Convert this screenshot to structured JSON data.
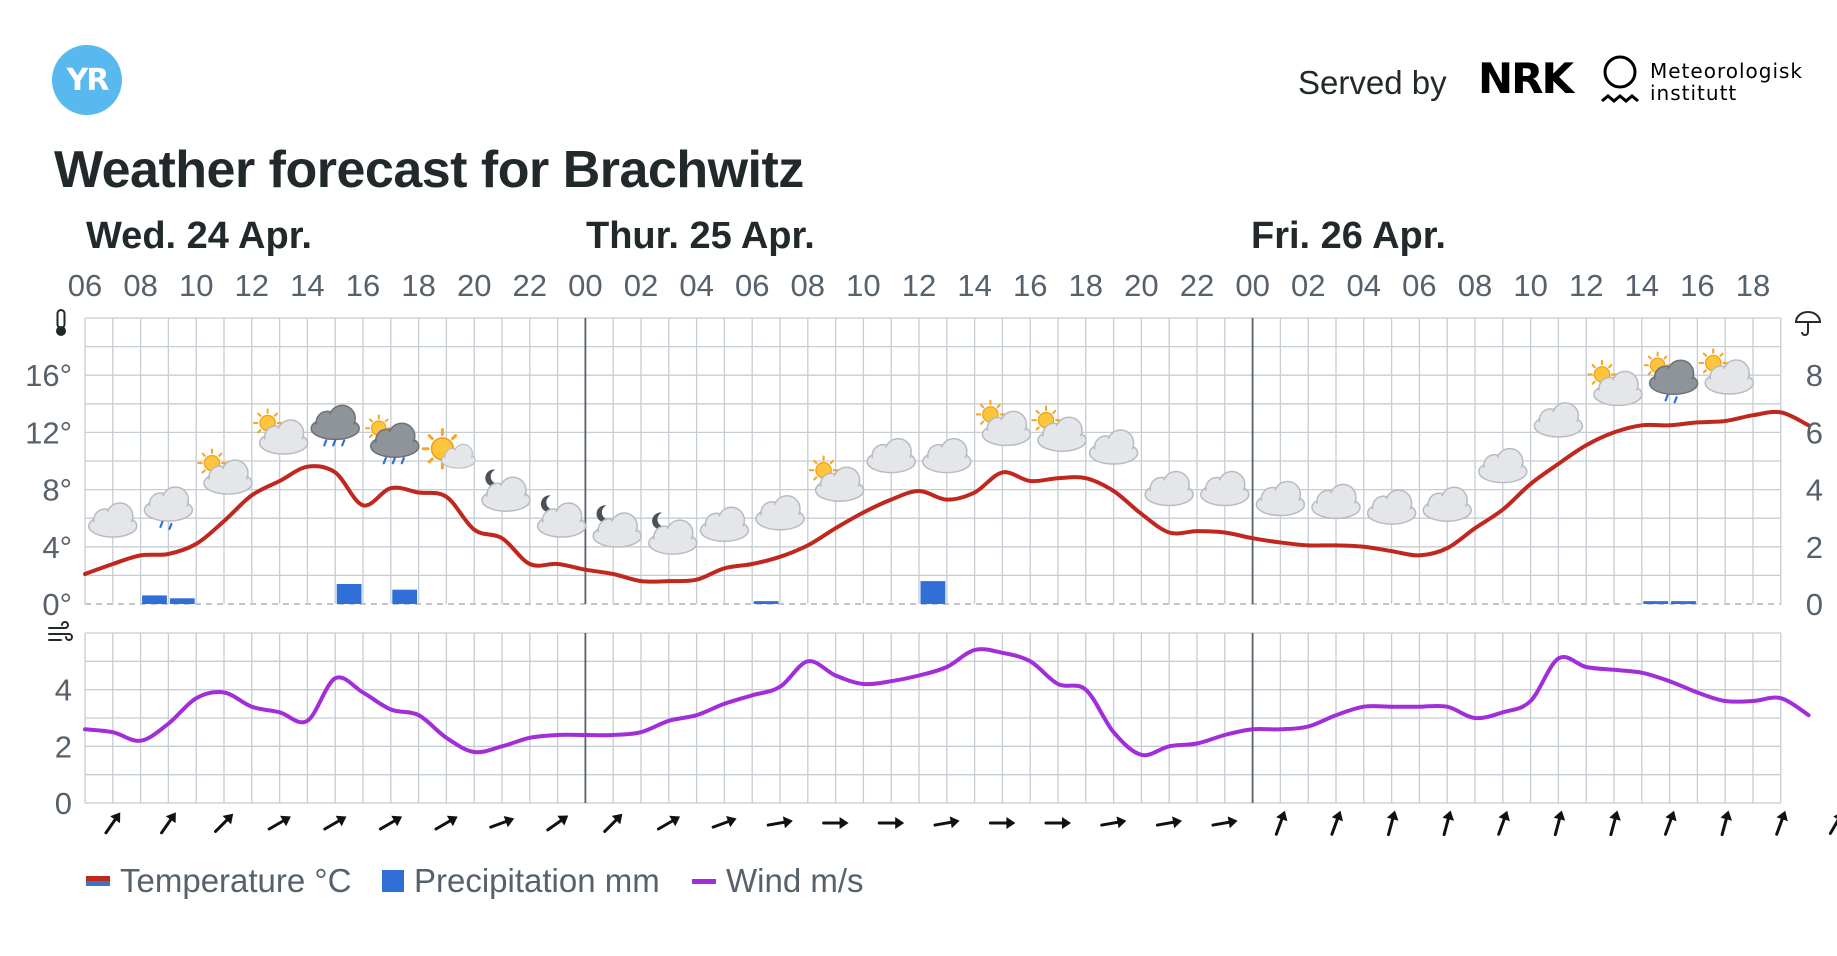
{
  "header": {
    "logo_text": "YR",
    "served_by": "Served by",
    "nrk_logo_text": "NRK",
    "met_line1": "Meteorologisk",
    "met_line2": "institutt"
  },
  "title": "Weather forecast for Brachwitz",
  "days": [
    {
      "label": "Wed. 24 Apr."
    },
    {
      "label": "Thur. 25 Apr."
    },
    {
      "label": "Fri. 26 Apr."
    }
  ],
  "legend": {
    "temperature": "Temperature °C",
    "precipitation": "Precipitation mm",
    "wind": "Wind m/s"
  },
  "colors": {
    "temperature": "#c0281f",
    "temperature_cold": "#3b73c8",
    "precipitation": "#2f6fd6",
    "wind": "#a12ed8",
    "grid": "#c6cdd3",
    "day_divider": "#56616c"
  },
  "chart_data": {
    "type": "line",
    "hour_tick_labels": [
      "06",
      "08",
      "10",
      "12",
      "14",
      "16",
      "18",
      "20",
      "22",
      "00",
      "02",
      "04",
      "06",
      "08",
      "10",
      "12",
      "14",
      "16",
      "18",
      "20",
      "22",
      "00",
      "02",
      "04",
      "06",
      "08",
      "10",
      "12",
      "14",
      "16",
      "18"
    ],
    "x_start": "2024-04-24T06:00",
    "x_end": "2024-04-26T19:00",
    "day_boundaries": [
      "2024-04-25T00:00",
      "2024-04-26T00:00"
    ],
    "temperature": {
      "unit": "°C",
      "ylim": [
        0,
        20
      ],
      "y_ticks": [
        0,
        4,
        8,
        12,
        16
      ],
      "y_tick_labels": [
        "0°",
        "4°",
        "8°",
        "12°",
        "16°"
      ],
      "values": [
        2.1,
        2.8,
        3.4,
        3.5,
        4.2,
        5.8,
        7.6,
        8.6,
        9.6,
        9.2,
        6.9,
        8.1,
        7.8,
        7.5,
        5.2,
        4.6,
        2.8,
        2.8,
        2.4,
        2.1,
        1.6,
        1.6,
        1.7,
        2.5,
        2.8,
        3.3,
        4.1,
        5.3,
        6.4,
        7.3,
        7.9,
        7.3,
        7.8,
        9.2,
        8.6,
        8.8,
        8.8,
        7.9,
        6.3,
        5.0,
        5.1,
        5.0,
        4.6,
        4.3,
        4.1,
        4.1,
        4.0,
        3.7,
        3.4,
        3.9,
        5.3,
        6.6,
        8.4,
        9.8,
        11.1,
        12.0,
        12.5,
        12.5,
        12.7,
        12.8,
        13.2,
        13.4,
        12.5
      ]
    },
    "precipitation": {
      "unit": "mm",
      "ylim": [
        0,
        10
      ],
      "y_ticks": [
        0,
        2,
        4,
        6,
        8
      ],
      "y_tick_labels": [
        "0",
        "2",
        "4",
        "6",
        "8"
      ],
      "bars": [
        {
          "time": "2024-04-24T08:00",
          "value": 0.3
        },
        {
          "time": "2024-04-24T09:00",
          "value": 0.2
        },
        {
          "time": "2024-04-24T15:00",
          "value": 0.7
        },
        {
          "time": "2024-04-24T17:00",
          "value": 0.5
        },
        {
          "time": "2024-04-25T06:00",
          "value": 0.1
        },
        {
          "time": "2024-04-25T12:00",
          "value": 0.8
        },
        {
          "time": "2024-04-26T14:00",
          "value": 0.1
        },
        {
          "time": "2024-04-26T15:00",
          "value": 0.1
        }
      ]
    },
    "wind": {
      "unit": "m/s",
      "ylim": [
        0,
        6
      ],
      "y_ticks": [
        0,
        2,
        4
      ],
      "y_tick_labels": [
        "0",
        "2",
        "4"
      ],
      "values": [
        2.6,
        2.5,
        2.2,
        2.8,
        3.7,
        3.9,
        3.4,
        3.2,
        2.9,
        4.4,
        3.9,
        3.3,
        3.1,
        2.3,
        1.8,
        2.0,
        2.3,
        2.4,
        2.4,
        2.4,
        2.5,
        2.9,
        3.1,
        3.5,
        3.8,
        4.1,
        5.0,
        4.5,
        4.2,
        4.3,
        4.5,
        4.8,
        5.4,
        5.3,
        5.0,
        4.2,
        4.0,
        2.5,
        1.7,
        2.0,
        2.1,
        2.4,
        2.6,
        2.6,
        2.7,
        3.1,
        3.4,
        3.4,
        3.4,
        3.4,
        3.0,
        3.2,
        3.6,
        5.1,
        4.8,
        4.7,
        4.6,
        4.3,
        3.9,
        3.6,
        3.6,
        3.7,
        3.1
      ],
      "direction_deg": [
        35,
        35,
        45,
        60,
        60,
        60,
        60,
        70,
        55,
        45,
        60,
        70,
        80,
        90,
        90,
        80,
        90,
        90,
        80,
        80,
        80,
        20,
        20,
        15,
        15,
        20,
        15,
        15,
        20,
        15,
        20,
        30,
        45,
        50,
        50,
        45,
        30
      ]
    },
    "weather_symbols": [
      {
        "time": "2024-04-24T07:00",
        "symbol": "cloudy"
      },
      {
        "time": "2024-04-24T09:00",
        "symbol": "light-rain"
      },
      {
        "time": "2024-04-24T11:00",
        "symbol": "partly-cloudy-day"
      },
      {
        "time": "2024-04-24T13:00",
        "symbol": "partly-cloudy-day"
      },
      {
        "time": "2024-04-24T15:00",
        "symbol": "rain"
      },
      {
        "time": "2024-04-24T17:00",
        "symbol": "rain-showers-day"
      },
      {
        "time": "2024-04-24T19:00",
        "symbol": "fair-day"
      },
      {
        "time": "2024-04-24T21:00",
        "symbol": "partly-cloudy-night"
      },
      {
        "time": "2024-04-24T23:00",
        "symbol": "partly-cloudy-night"
      },
      {
        "time": "2024-04-25T01:00",
        "symbol": "partly-cloudy-night"
      },
      {
        "time": "2024-04-25T03:00",
        "symbol": "partly-cloudy-night"
      },
      {
        "time": "2024-04-25T05:00",
        "symbol": "cloudy"
      },
      {
        "time": "2024-04-25T07:00",
        "symbol": "cloudy"
      },
      {
        "time": "2024-04-25T09:00",
        "symbol": "partly-cloudy-day"
      },
      {
        "time": "2024-04-25T11:00",
        "symbol": "cloudy"
      },
      {
        "time": "2024-04-25T13:00",
        "symbol": "cloudy"
      },
      {
        "time": "2024-04-25T15:00",
        "symbol": "partly-cloudy-day"
      },
      {
        "time": "2024-04-25T17:00",
        "symbol": "partly-cloudy-day"
      },
      {
        "time": "2024-04-25T19:00",
        "symbol": "cloudy"
      },
      {
        "time": "2024-04-25T21:00",
        "symbol": "cloudy"
      },
      {
        "time": "2024-04-25T23:00",
        "symbol": "cloudy"
      },
      {
        "time": "2024-04-26T01:00",
        "symbol": "cloudy"
      },
      {
        "time": "2024-04-26T03:00",
        "symbol": "cloudy"
      },
      {
        "time": "2024-04-26T05:00",
        "symbol": "cloudy"
      },
      {
        "time": "2024-04-26T07:00",
        "symbol": "cloudy"
      },
      {
        "time": "2024-04-26T09:00",
        "symbol": "cloudy"
      },
      {
        "time": "2024-04-26T11:00",
        "symbol": "cloudy"
      },
      {
        "time": "2024-04-26T13:00",
        "symbol": "partly-cloudy-day"
      },
      {
        "time": "2024-04-26T15:00",
        "symbol": "light-rain-showers-day"
      },
      {
        "time": "2024-04-26T17:00",
        "symbol": "partly-cloudy-day"
      }
    ],
    "grid": true,
    "legend_position": "bottom-left"
  }
}
